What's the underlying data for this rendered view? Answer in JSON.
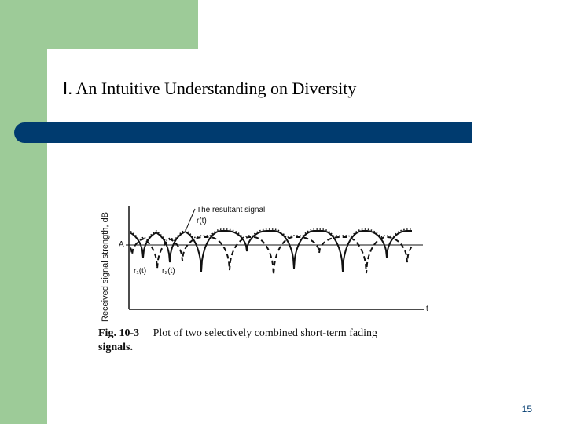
{
  "slide": {
    "title_prefix": "I.",
    "title_text": "An Intuitive Understanding on Diversity",
    "slide_number": "15"
  },
  "figure": {
    "y_axis_label": "Received signal strength, dB",
    "x_axis_label": "t",
    "level_label": "A",
    "resultant_label_line1": "The resultant signal",
    "resultant_label_line2": "r(t)",
    "r1_label": "r₁(t)",
    "r2_label": "r₂(t)",
    "caption_fig": "Fig. 10-3",
    "caption_text": "Plot of two selectively combined short-term fading",
    "caption_cont": "signals."
  },
  "colors": {
    "green": "#9dcb98",
    "bar_blue": "#003b6f"
  }
}
